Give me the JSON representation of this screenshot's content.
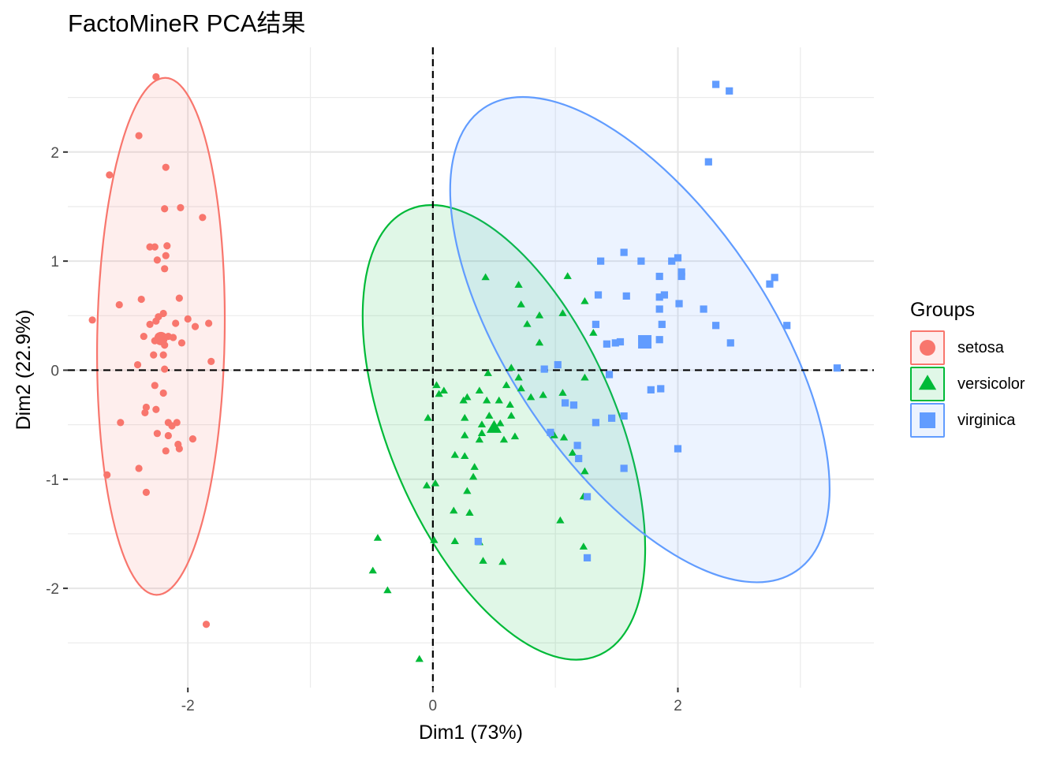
{
  "chart_data": {
    "type": "scatter",
    "title": "FactoMineR PCA结果",
    "xlabel": "Dim1 (73%)",
    "ylabel": "Dim2 (22.9%)",
    "xlim": [
      -2.98,
      3.6
    ],
    "ylim": [
      -2.91,
      2.96
    ],
    "x_ticks": [
      -2,
      0,
      2
    ],
    "x_tick_labels": [
      "-2",
      "0",
      "2"
    ],
    "y_ticks": [
      -2,
      -1,
      0,
      1,
      2
    ],
    "y_tick_labels": [
      "-2",
      "-1",
      "0",
      "1",
      "2"
    ],
    "grid": true,
    "reference_lines": {
      "x": 0,
      "y": 0,
      "style": "dashed"
    },
    "legend": {
      "title": "Groups",
      "position": "right"
    },
    "series": [
      {
        "name": "setosa",
        "color": "#F8766D",
        "shape": "circle",
        "centroid": [
          -2.22,
          0.29
        ],
        "ellipse": {
          "cx": -2.22,
          "cy": 0.31,
          "rx": 0.52,
          "ry": 2.37,
          "angle": 1.0
        },
        "points": [
          [
            -2.26,
            2.69
          ],
          [
            -2.4,
            2.15
          ],
          [
            -2.64,
            1.79
          ],
          [
            -2.18,
            1.86
          ],
          [
            -2.19,
            1.48
          ],
          [
            -2.06,
            1.49
          ],
          [
            -1.88,
            1.4
          ],
          [
            -2.31,
            1.13
          ],
          [
            -2.27,
            1.13
          ],
          [
            -2.17,
            1.14
          ],
          [
            -2.25,
            1.01
          ],
          [
            -2.18,
            1.05
          ],
          [
            -2.19,
            0.93
          ],
          [
            -2.07,
            0.66
          ],
          [
            -2.38,
            0.65
          ],
          [
            -2.56,
            0.6
          ],
          [
            -2.26,
            0.45
          ],
          [
            -2.24,
            0.49
          ],
          [
            -2.2,
            0.52
          ],
          [
            -2.0,
            0.47
          ],
          [
            -1.94,
            0.4
          ],
          [
            -1.83,
            0.43
          ],
          [
            -2.78,
            0.46
          ],
          [
            -2.31,
            0.42
          ],
          [
            -2.1,
            0.43
          ],
          [
            -2.24,
            0.31
          ],
          [
            -2.21,
            0.29
          ],
          [
            -2.16,
            0.31
          ],
          [
            -2.19,
            0.23
          ],
          [
            -2.27,
            0.27
          ],
          [
            -2.05,
            0.25
          ],
          [
            -2.12,
            0.3
          ],
          [
            -2.36,
            0.31
          ],
          [
            -2.28,
            0.14
          ],
          [
            -2.2,
            0.14
          ],
          [
            -1.81,
            0.08
          ],
          [
            -2.41,
            0.05
          ],
          [
            -2.19,
            0.01
          ],
          [
            -2.27,
            -0.14
          ],
          [
            -2.2,
            -0.21
          ],
          [
            -2.34,
            -0.34
          ],
          [
            -2.26,
            -0.36
          ],
          [
            -2.35,
            -0.39
          ],
          [
            -2.16,
            -0.48
          ],
          [
            -2.13,
            -0.51
          ],
          [
            -2.09,
            -0.48
          ],
          [
            -2.55,
            -0.48
          ],
          [
            -2.25,
            -0.58
          ],
          [
            -2.16,
            -0.6
          ],
          [
            -2.08,
            -0.68
          ],
          [
            -2.07,
            -0.72
          ],
          [
            -2.18,
            -0.74
          ],
          [
            -1.96,
            -0.63
          ],
          [
            -2.4,
            -0.9
          ],
          [
            -2.66,
            -0.96
          ],
          [
            -2.34,
            -1.12
          ],
          [
            -1.85,
            -2.33
          ]
        ]
      },
      {
        "name": "versicolor",
        "color": "#00BA38",
        "shape": "triangle",
        "centroid": [
          0.5,
          -0.53
        ],
        "ellipse": {
          "cx": 0.58,
          "cy": -0.57,
          "rx": 0.93,
          "ry": 2.22,
          "angle": -23
        },
        "points": [
          [
            0.43,
            0.85
          ],
          [
            1.1,
            0.86
          ],
          [
            0.7,
            0.78
          ],
          [
            1.24,
            0.63
          ],
          [
            0.72,
            0.6
          ],
          [
            1.06,
            0.52
          ],
          [
            0.87,
            0.5
          ],
          [
            0.77,
            0.42
          ],
          [
            1.31,
            0.34
          ],
          [
            0.87,
            0.25
          ],
          [
            0.64,
            0.02
          ],
          [
            0.7,
            -0.07
          ],
          [
            1.24,
            -0.07
          ],
          [
            0.45,
            -0.03
          ],
          [
            0.6,
            -0.14
          ],
          [
            0.72,
            -0.17
          ],
          [
            1.06,
            -0.21
          ],
          [
            0.38,
            -0.19
          ],
          [
            0.8,
            -0.25
          ],
          [
            0.9,
            -0.23
          ],
          [
            0.25,
            -0.28
          ],
          [
            0.28,
            -0.25
          ],
          [
            0.44,
            -0.28
          ],
          [
            0.54,
            -0.28
          ],
          [
            0.63,
            -0.32
          ],
          [
            0.03,
            -0.14
          ],
          [
            0.09,
            -0.19
          ],
          [
            0.05,
            -0.22
          ],
          [
            -0.04,
            -0.44
          ],
          [
            0.46,
            -0.42
          ],
          [
            0.4,
            -0.5
          ],
          [
            0.55,
            -0.49
          ],
          [
            0.64,
            -0.42
          ],
          [
            0.26,
            -0.44
          ],
          [
            0.4,
            -0.58
          ],
          [
            0.26,
            -0.6
          ],
          [
            0.38,
            -0.64
          ],
          [
            0.58,
            -0.64
          ],
          [
            0.67,
            -0.61
          ],
          [
            0.99,
            -0.6
          ],
          [
            1.07,
            -0.62
          ],
          [
            1.14,
            -0.76
          ],
          [
            0.26,
            -0.79
          ],
          [
            0.18,
            -0.78
          ],
          [
            1.24,
            -0.93
          ],
          [
            0.34,
            -0.89
          ],
          [
            0.33,
            -0.98
          ],
          [
            0.02,
            -1.04
          ],
          [
            -0.05,
            -1.06
          ],
          [
            0.28,
            -1.11
          ],
          [
            1.23,
            -1.16
          ],
          [
            0.17,
            -1.29
          ],
          [
            0.3,
            -1.31
          ],
          [
            1.04,
            -1.38
          ],
          [
            0.01,
            -1.56
          ],
          [
            0.18,
            -1.57
          ],
          [
            0.38,
            -1.58
          ],
          [
            1.23,
            -1.62
          ],
          [
            0.41,
            -1.75
          ],
          [
            0.57,
            -1.76
          ],
          [
            -0.45,
            -1.54
          ],
          [
            -0.49,
            -1.84
          ],
          [
            -0.37,
            -2.02
          ],
          [
            -0.11,
            -2.65
          ]
        ]
      },
      {
        "name": "virginica",
        "color": "#619CFF",
        "shape": "square",
        "centroid": [
          1.73,
          0.26
        ],
        "ellipse": {
          "cx": 1.69,
          "cy": 0.28,
          "rx": 1.06,
          "ry": 2.56,
          "angle": -34
        },
        "points": [
          [
            2.31,
            2.62
          ],
          [
            2.42,
            2.56
          ],
          [
            2.25,
            1.91
          ],
          [
            1.56,
            1.08
          ],
          [
            1.37,
            1.0
          ],
          [
            1.7,
            1.0
          ],
          [
            2.0,
            1.03
          ],
          [
            1.95,
            1.0
          ],
          [
            2.03,
            0.9
          ],
          [
            2.03,
            0.86
          ],
          [
            1.85,
            0.86
          ],
          [
            2.79,
            0.85
          ],
          [
            2.75,
            0.79
          ],
          [
            1.58,
            0.68
          ],
          [
            1.35,
            0.69
          ],
          [
            1.85,
            0.67
          ],
          [
            1.89,
            0.69
          ],
          [
            2.01,
            0.61
          ],
          [
            2.21,
            0.56
          ],
          [
            1.85,
            0.56
          ],
          [
            1.87,
            0.42
          ],
          [
            1.33,
            0.42
          ],
          [
            2.31,
            0.41
          ],
          [
            2.89,
            0.41
          ],
          [
            1.85,
            0.28
          ],
          [
            2.43,
            0.25
          ],
          [
            1.49,
            0.25
          ],
          [
            1.53,
            0.26
          ],
          [
            1.42,
            0.24
          ],
          [
            0.91,
            0.01
          ],
          [
            1.02,
            0.05
          ],
          [
            3.3,
            0.02
          ],
          [
            1.44,
            -0.04
          ],
          [
            1.78,
            -0.18
          ],
          [
            1.86,
            -0.17
          ],
          [
            1.08,
            -0.3
          ],
          [
            1.15,
            -0.32
          ],
          [
            1.56,
            -0.42
          ],
          [
            1.46,
            -0.44
          ],
          [
            1.33,
            -0.48
          ],
          [
            0.96,
            -0.57
          ],
          [
            1.18,
            -0.69
          ],
          [
            1.19,
            -0.81
          ],
          [
            2.0,
            -0.72
          ],
          [
            1.56,
            -0.9
          ],
          [
            1.26,
            -1.16
          ],
          [
            0.37,
            -1.57
          ],
          [
            1.26,
            -1.72
          ]
        ]
      }
    ]
  }
}
